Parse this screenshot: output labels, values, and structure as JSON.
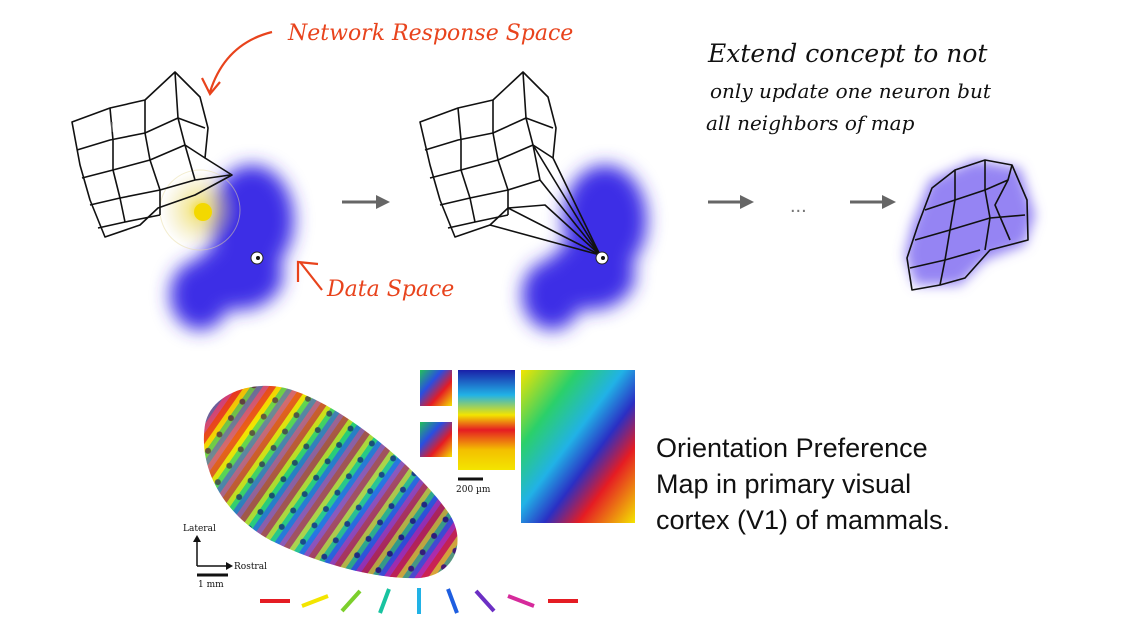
{
  "annotations": {
    "network_response_space": "Network Response Space",
    "data_space": "Data Space",
    "extend_concept_line1": "Extend concept to not",
    "extend_concept_line2": "only update one neuron but",
    "extend_concept_line3": "all neighbors of map",
    "ellipsis": "...",
    "accent_color": "#e8431c"
  },
  "figure": {
    "scale_label": "200 µm",
    "lateral_label": "Lateral",
    "rostral_label": "Rostral",
    "mm_label": "1 mm",
    "caption_line1": "Orientation Preference",
    "caption_line2": "Map in primary visual",
    "caption_line3": "cortex (V1) of mammals.",
    "orientation_bar_colors": [
      "#e51c23",
      "#f3e500",
      "#7ccf2b",
      "#18c3a0",
      "#21b2e6",
      "#1e5ee0",
      "#6c2fc4",
      "#d62a9b",
      "#e51c23"
    ]
  }
}
